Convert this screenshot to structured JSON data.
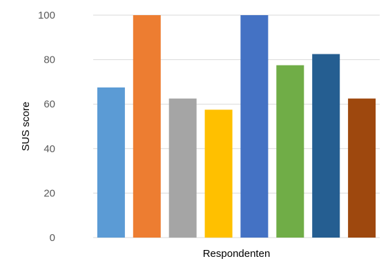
{
  "chart_data": {
    "type": "bar",
    "title": "",
    "xlabel": "Respondenten",
    "ylabel": "SUS score",
    "ylim": [
      0,
      100
    ],
    "yticks": [
      0,
      20,
      40,
      60,
      80,
      100
    ],
    "grid": true,
    "legend": "none",
    "categories": [
      "",
      "",
      "",
      "",
      "",
      "",
      "",
      ""
    ],
    "values": [
      67.5,
      100,
      62.5,
      57.5,
      100,
      77.5,
      82.5,
      62.5
    ],
    "colors": [
      "#5b9bd5",
      "#ed7d31",
      "#a5a5a5",
      "#ffc000",
      "#4472c4",
      "#70ad47",
      "#255e91",
      "#9e480e"
    ]
  }
}
